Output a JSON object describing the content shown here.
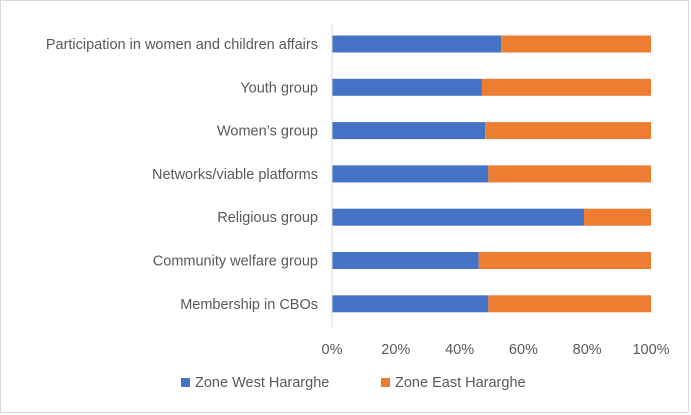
{
  "chart_data": {
    "type": "bar",
    "orientation": "horizontal",
    "stacked": "percent",
    "title": "",
    "xlabel": "",
    "ylabel": "",
    "xlim": [
      0,
      100
    ],
    "x_ticks": [
      "0%",
      "20%",
      "40%",
      "60%",
      "80%",
      "100%"
    ],
    "categories": [
      "Participation in women and children affairs",
      "Youth group",
      "Women’s group",
      "Networks/viable platforms",
      "Religious group",
      "Community welfare group",
      "Membership in CBOs"
    ],
    "series": [
      {
        "name": "Zone West Hararghe",
        "color": "#4472c4",
        "values": [
          53,
          47,
          48,
          49,
          79,
          46,
          49
        ]
      },
      {
        "name": "Zone East Hararghe",
        "color": "#ed7d31",
        "values": [
          47,
          53,
          52,
          51,
          21,
          54,
          51
        ]
      }
    ],
    "legend": "bottom",
    "grid": false
  }
}
